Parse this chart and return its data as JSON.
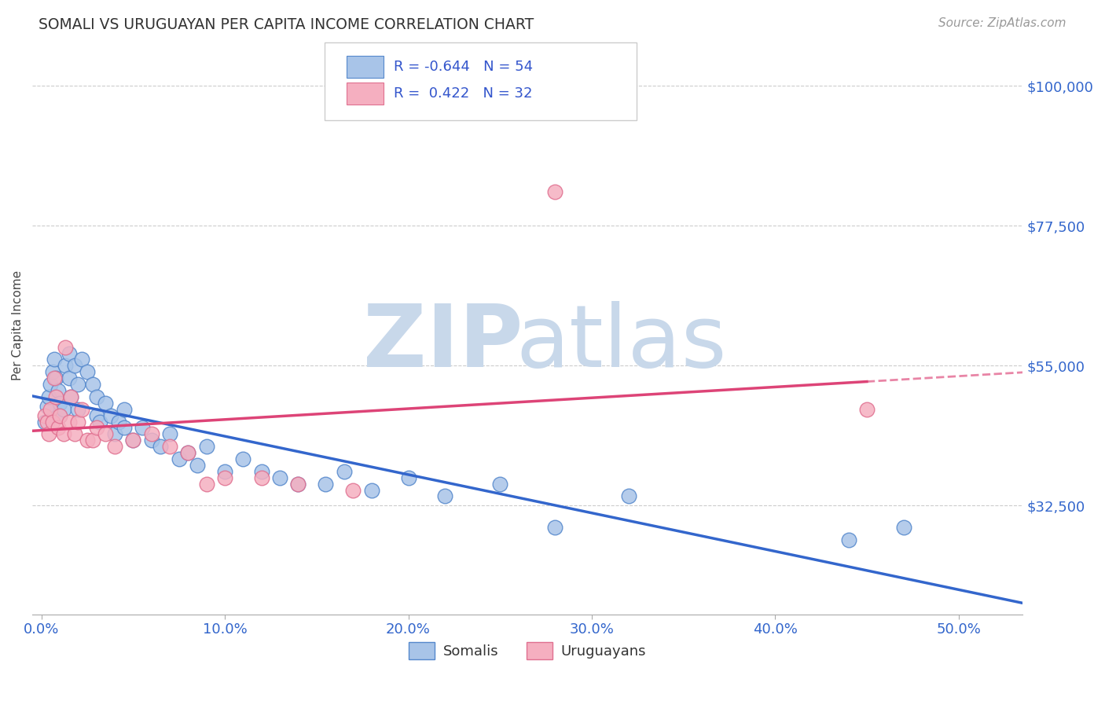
{
  "title": "SOMALI VS URUGUAYAN PER CAPITA INCOME CORRELATION CHART",
  "source": "Source: ZipAtlas.com",
  "xlabel_ticks": [
    "0.0%",
    "10.0%",
    "20.0%",
    "30.0%",
    "40.0%",
    "50.0%"
  ],
  "xlabel_vals": [
    0.0,
    0.1,
    0.2,
    0.3,
    0.4,
    0.5
  ],
  "ylabel": "Per Capita Income",
  "ytick_labels": [
    "$32,500",
    "$55,000",
    "$77,500",
    "$100,000"
  ],
  "ytick_vals": [
    32500,
    55000,
    77500,
    100000
  ],
  "ylim": [
    15000,
    108000
  ],
  "xlim": [
    -0.005,
    0.535
  ],
  "somali_color": "#a8c4e8",
  "uruguayan_color": "#f5afc0",
  "somali_edge": "#5588cc",
  "uruguayan_edge": "#e07090",
  "trend_somali_color": "#3366cc",
  "trend_uruguayan_color": "#dd4477",
  "watermark_color": "#c8d8ea",
  "legend_somali_label": "Somalis",
  "legend_uruguayan_label": "Uruguayans",
  "R_somali": -0.644,
  "N_somali": 54,
  "R_uruguayan": 0.422,
  "N_uruguayan": 32,
  "somali_x": [
    0.002,
    0.003,
    0.004,
    0.005,
    0.006,
    0.007,
    0.008,
    0.009,
    0.01,
    0.01,
    0.012,
    0.013,
    0.015,
    0.015,
    0.016,
    0.018,
    0.02,
    0.02,
    0.022,
    0.025,
    0.028,
    0.03,
    0.03,
    0.032,
    0.035,
    0.038,
    0.04,
    0.042,
    0.045,
    0.045,
    0.05,
    0.055,
    0.06,
    0.065,
    0.07,
    0.075,
    0.08,
    0.085,
    0.09,
    0.1,
    0.11,
    0.12,
    0.13,
    0.14,
    0.155,
    0.165,
    0.18,
    0.2,
    0.22,
    0.25,
    0.28,
    0.32,
    0.44,
    0.47
  ],
  "somali_y": [
    46000,
    48500,
    50000,
    52000,
    54000,
    56000,
    53000,
    51000,
    49000,
    47000,
    48000,
    55000,
    57000,
    53000,
    50000,
    55000,
    52000,
    48000,
    56000,
    54000,
    52000,
    47000,
    50000,
    46000,
    49000,
    47000,
    44000,
    46000,
    48000,
    45000,
    43000,
    45000,
    43000,
    42000,
    44000,
    40000,
    41000,
    39000,
    42000,
    38000,
    40000,
    38000,
    37000,
    36000,
    36000,
    38000,
    35000,
    37000,
    34000,
    36000,
    29000,
    34000,
    27000,
    29000
  ],
  "uruguayan_x": [
    0.002,
    0.003,
    0.004,
    0.005,
    0.006,
    0.007,
    0.008,
    0.009,
    0.01,
    0.012,
    0.013,
    0.015,
    0.016,
    0.018,
    0.02,
    0.022,
    0.025,
    0.028,
    0.03,
    0.035,
    0.04,
    0.05,
    0.06,
    0.07,
    0.08,
    0.09,
    0.1,
    0.12,
    0.14,
    0.17,
    0.28,
    0.45
  ],
  "uruguayan_y": [
    47000,
    46000,
    44000,
    48000,
    46000,
    53000,
    50000,
    45000,
    47000,
    44000,
    58000,
    46000,
    50000,
    44000,
    46000,
    48000,
    43000,
    43000,
    45000,
    44000,
    42000,
    43000,
    44000,
    42000,
    41000,
    36000,
    37000,
    37000,
    36000,
    35000,
    83000,
    48000
  ]
}
